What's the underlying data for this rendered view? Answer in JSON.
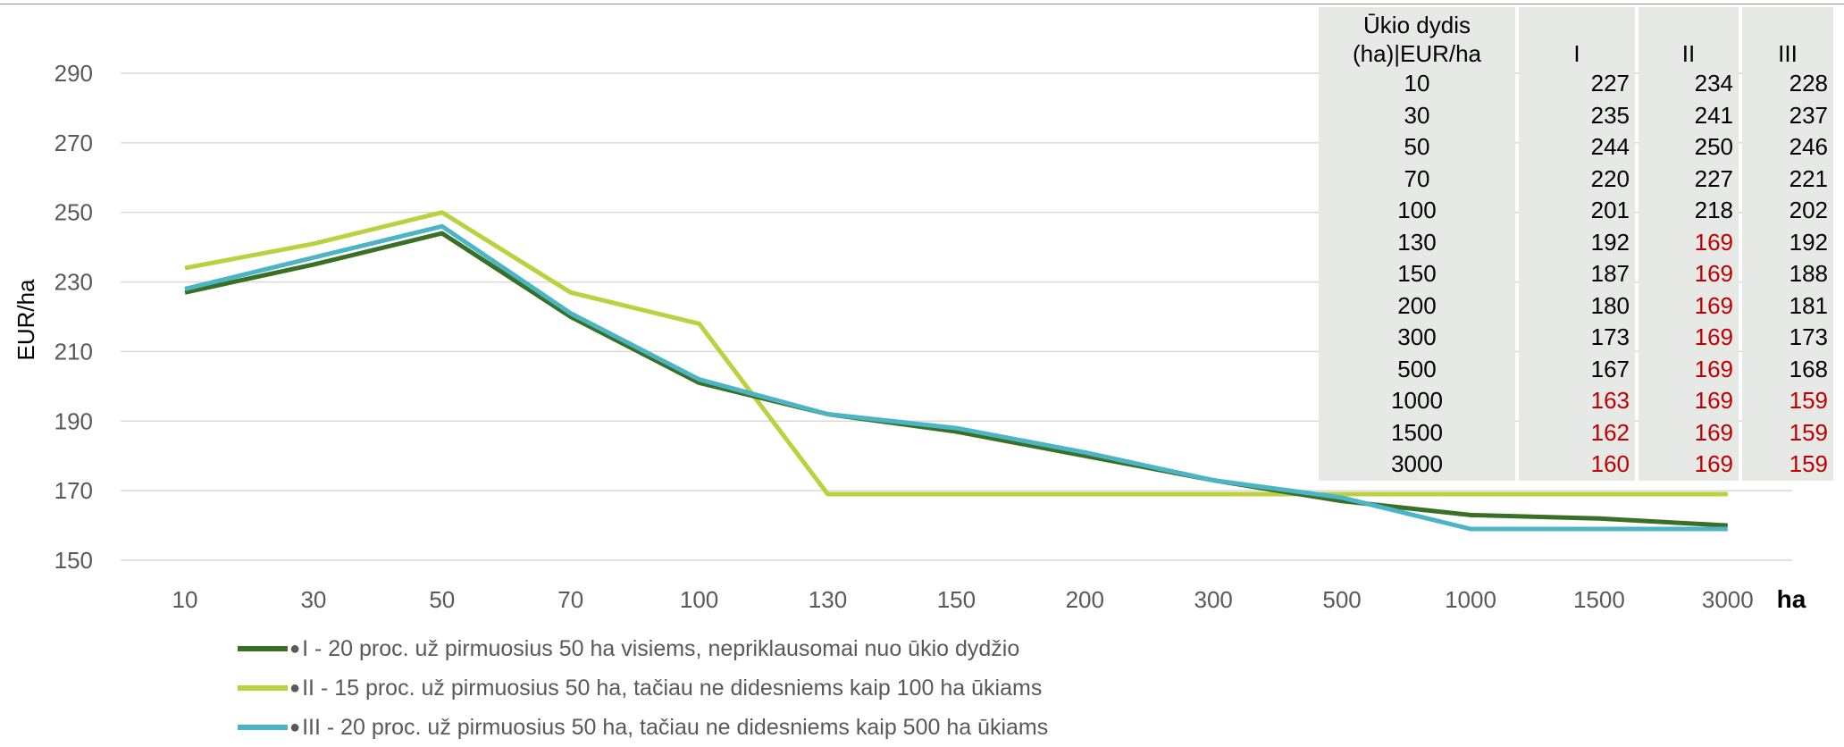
{
  "chart_data": {
    "type": "line",
    "ylabel": "EUR/ha",
    "xlabel": "ha",
    "ylim": [
      150,
      290
    ],
    "yticks": [
      150,
      170,
      190,
      210,
      230,
      250,
      270,
      290
    ],
    "categories": [
      "10",
      "30",
      "50",
      "70",
      "100",
      "130",
      "150",
      "200",
      "300",
      "500",
      "1000",
      "1500",
      "3000"
    ],
    "grid": true,
    "legend_position": "bottom-left",
    "series": [
      {
        "name": "I - 20 proc. už pirmuosius 50 ha visiems, nepriklausomai nuo ūkio dydžio",
        "color": "#3a7026",
        "values": [
          227,
          235,
          244,
          220,
          201,
          192,
          187,
          180,
          173,
          167,
          163,
          162,
          160
        ]
      },
      {
        "name": "II - 15 proc. už pirmuosius 50 ha, tačiau ne didesniems kaip 100 ha ūkiams",
        "color": "#bcd140",
        "values": [
          234,
          241,
          250,
          227,
          218,
          169,
          169,
          169,
          169,
          169,
          169,
          169,
          169
        ]
      },
      {
        "name": "III - 20 proc. už pirmuosius 50 ha, tačiau ne didesniems kaip 500 ha ūkiams",
        "color": "#4bb5c6",
        "values": [
          228,
          237,
          246,
          221,
          202,
          192,
          188,
          181,
          173,
          168,
          159,
          159,
          159
        ]
      }
    ]
  },
  "table": {
    "header_size_line1": "Ūkio dydis",
    "header_size_line2": "(ha)|EUR/ha",
    "columns": [
      "I",
      "II",
      "III"
    ],
    "highlight_color": "#c00000",
    "rows": [
      {
        "size": "10",
        "values": [
          "227",
          "234",
          "228"
        ],
        "red": [
          false,
          false,
          false
        ]
      },
      {
        "size": "30",
        "values": [
          "235",
          "241",
          "237"
        ],
        "red": [
          false,
          false,
          false
        ]
      },
      {
        "size": "50",
        "values": [
          "244",
          "250",
          "246"
        ],
        "red": [
          false,
          false,
          false
        ]
      },
      {
        "size": "70",
        "values": [
          "220",
          "227",
          "221"
        ],
        "red": [
          false,
          false,
          false
        ]
      },
      {
        "size": "100",
        "values": [
          "201",
          "218",
          "202"
        ],
        "red": [
          false,
          false,
          false
        ]
      },
      {
        "size": "130",
        "values": [
          "192",
          "169",
          "192"
        ],
        "red": [
          false,
          true,
          false
        ]
      },
      {
        "size": "150",
        "values": [
          "187",
          "169",
          "188"
        ],
        "red": [
          false,
          true,
          false
        ]
      },
      {
        "size": "200",
        "values": [
          "180",
          "169",
          "181"
        ],
        "red": [
          false,
          true,
          false
        ]
      },
      {
        "size": "300",
        "values": [
          "173",
          "169",
          "173"
        ],
        "red": [
          false,
          true,
          false
        ]
      },
      {
        "size": "500",
        "values": [
          "167",
          "169",
          "168"
        ],
        "red": [
          false,
          true,
          false
        ]
      },
      {
        "size": "1000",
        "values": [
          "163",
          "169",
          "159"
        ],
        "red": [
          true,
          true,
          true
        ]
      },
      {
        "size": "1500",
        "values": [
          "162",
          "169",
          "159"
        ],
        "red": [
          true,
          true,
          true
        ]
      },
      {
        "size": "3000",
        "values": [
          "160",
          "169",
          "159"
        ],
        "red": [
          true,
          true,
          true
        ]
      }
    ]
  }
}
